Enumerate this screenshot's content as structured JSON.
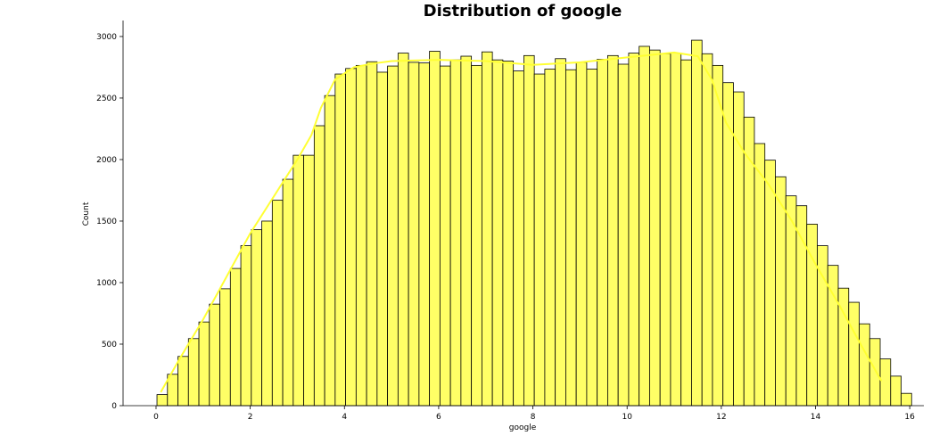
{
  "chart_data": {
    "type": "bar",
    "title": "Distribution of google",
    "xlabel": "google",
    "ylabel": "Count",
    "xlim": [
      -0.7,
      16.3
    ],
    "ylim": [
      0,
      3130
    ],
    "x_ticks": [
      0,
      2,
      4,
      6,
      8,
      10,
      12,
      14,
      16
    ],
    "y_ticks": [
      0,
      500,
      1000,
      1500,
      2000,
      2500,
      3000
    ],
    "grid": false,
    "bar_color": "#ffff66",
    "kde_color": "#ffff33",
    "bin_start": 0.02,
    "bin_width": 0.2225,
    "values": [
      90,
      255,
      400,
      545,
      680,
      825,
      950,
      1115,
      1300,
      1430,
      1500,
      1670,
      1840,
      2035,
      2035,
      2275,
      2520,
      2695,
      2740,
      2765,
      2795,
      2710,
      2760,
      2865,
      2790,
      2785,
      2880,
      2760,
      2810,
      2840,
      2765,
      2875,
      2810,
      2800,
      2720,
      2845,
      2695,
      2735,
      2820,
      2730,
      2790,
      2735,
      2815,
      2845,
      2775,
      2865,
      2920,
      2890,
      2860,
      2865,
      2810,
      2970,
      2860,
      2765,
      2625,
      2550,
      2345,
      2130,
      1995,
      1860,
      1705,
      1625,
      1475,
      1300,
      1140,
      955,
      840,
      665,
      545,
      380,
      240,
      100
    ],
    "kde": {
      "x": [
        0.1,
        0.5,
        1.0,
        1.5,
        2.0,
        2.5,
        3.0,
        3.3,
        3.5,
        3.8,
        4.2,
        4.6,
        5.0,
        6.0,
        7.0,
        8.0,
        9.0,
        10.0,
        11.0,
        11.5,
        11.8,
        12.1,
        12.5,
        13.0,
        13.5,
        14.0,
        14.5,
        15.0,
        15.4
      ],
      "y": [
        110,
        380,
        700,
        1050,
        1400,
        1700,
        2000,
        2200,
        2420,
        2650,
        2750,
        2780,
        2800,
        2810,
        2800,
        2770,
        2790,
        2830,
        2870,
        2840,
        2650,
        2300,
        2050,
        1800,
        1500,
        1150,
        820,
        470,
        200
      ]
    }
  }
}
